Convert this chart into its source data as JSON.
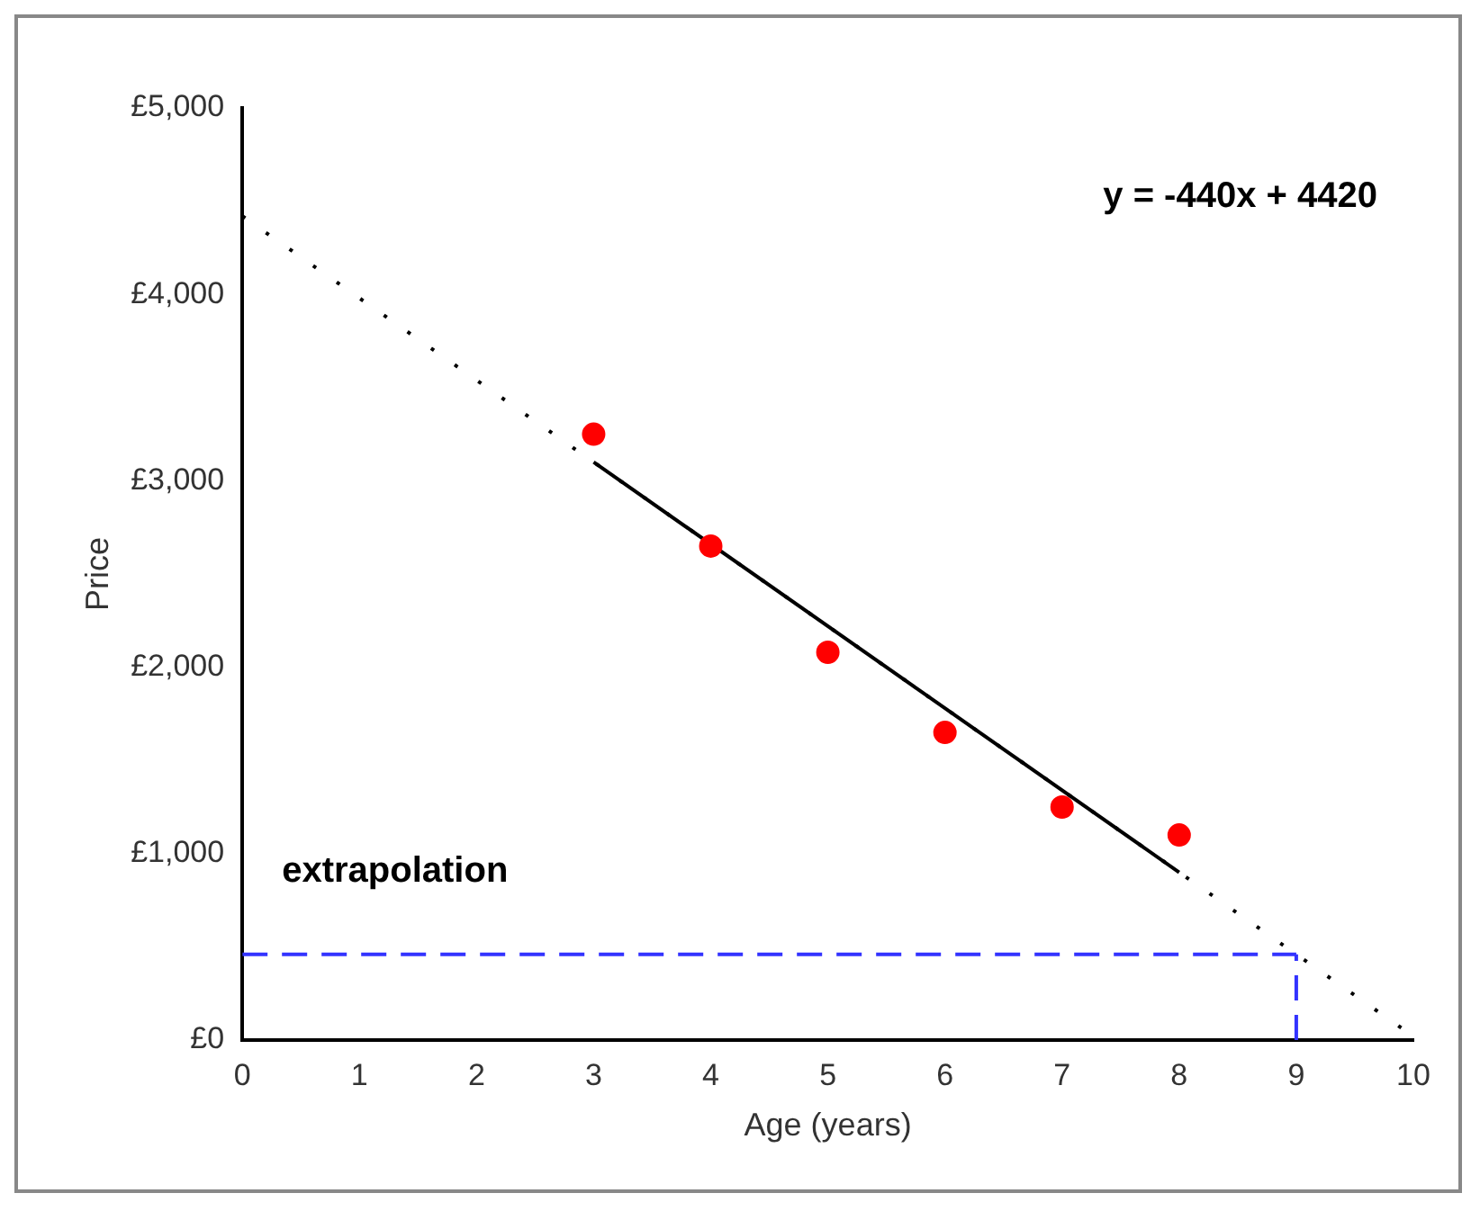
{
  "chart_data": {
    "type": "scatter",
    "xlabel": "Age (years)",
    "ylabel": "Price",
    "xlim": [
      0,
      10
    ],
    "xticks": [
      0,
      1,
      2,
      3,
      4,
      5,
      6,
      7,
      8,
      9,
      10
    ],
    "ylim": [
      0,
      5000
    ],
    "yticks": [
      {
        "value": 0,
        "label": "£0"
      },
      {
        "value": 1000,
        "label": "£1,000"
      },
      {
        "value": 2000,
        "label": "£2,000"
      },
      {
        "value": 3000,
        "label": "£3,000"
      },
      {
        "value": 4000,
        "label": "£4,000"
      },
      {
        "value": 5000,
        "label": "£5,000"
      }
    ],
    "grid": false,
    "legend": false,
    "annotations": [
      "y = -440x + 4420",
      "extrapolation"
    ],
    "series": [
      {
        "type": "scatter",
        "color": "#ff0000",
        "marker": "circle",
        "x": [
          3,
          4,
          5,
          6,
          7,
          8
        ],
        "values": [
          3250,
          2650,
          2080,
          1650,
          1250,
          1100
        ]
      },
      {
        "type": "line",
        "color": "#000000",
        "line_style": "dotted",
        "marker": "none",
        "x": [
          0,
          10
        ],
        "values": [
          4420,
          20
        ]
      },
      {
        "type": "line",
        "color": "#000000",
        "line_style": "solid",
        "marker": "none",
        "x": [
          3,
          8
        ],
        "values": [
          3100,
          900
        ]
      },
      {
        "type": "line",
        "color": "#3333ff",
        "line_style": "dashed",
        "marker": "none",
        "x": [
          0,
          9
        ],
        "values": [
          460,
          460
        ]
      },
      {
        "type": "line",
        "color": "#3333ff",
        "line_style": "dashed",
        "marker": "none",
        "x": [
          9,
          9
        ],
        "values": [
          0,
          460
        ]
      }
    ]
  }
}
